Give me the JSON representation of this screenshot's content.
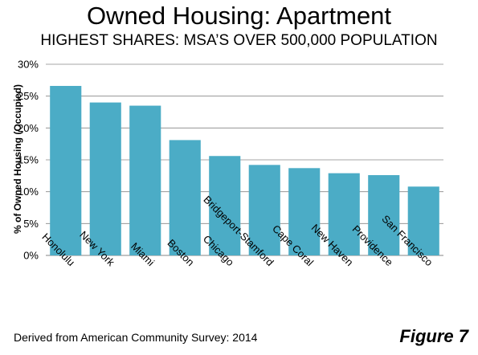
{
  "title": "Owned Housing: Apartment",
  "subtitle": "HIGHEST SHARES: MSA’S OVER 500,000 POPULATION",
  "source": "Derived from American Community Survey: 2014",
  "figure_label": "Figure 7",
  "colors": {
    "bar": "#4bacc6",
    "grid": "#868686"
  },
  "chart_data": {
    "type": "bar",
    "categories": [
      "Honolulu",
      "New York",
      "Miami",
      "Boston",
      "Chicago",
      "Bridgeport-Stamford",
      "Cape Coral",
      "New Haven",
      "Providence",
      "San Francisco"
    ],
    "values": [
      26.6,
      24.0,
      23.5,
      18.1,
      15.6,
      14.2,
      13.7,
      12.9,
      12.6,
      10.8
    ],
    "title": "Owned Housing: Apartment",
    "subtitle": "HIGHEST SHARES: MSA’S OVER 500,000 POPULATION",
    "xlabel": "",
    "ylabel": "% of Owned Housing (Occupied)",
    "ylim": [
      0,
      30
    ],
    "yticks": [
      0,
      5,
      10,
      15,
      20,
      25,
      30
    ],
    "ytick_labels": [
      "0%",
      "5%",
      "10%",
      "15%",
      "20%",
      "25%",
      "30%"
    ],
    "grid": true,
    "legend": "none"
  }
}
